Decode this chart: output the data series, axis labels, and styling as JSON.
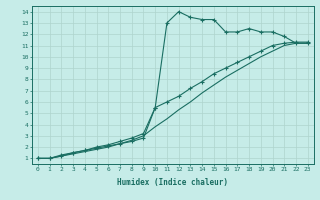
{
  "xlabel": "Humidex (Indice chaleur)",
  "xlim": [
    -0.5,
    23.5
  ],
  "ylim": [
    0.5,
    14.5
  ],
  "xticks": [
    0,
    1,
    2,
    3,
    4,
    5,
    6,
    7,
    8,
    9,
    10,
    11,
    12,
    13,
    14,
    15,
    16,
    17,
    18,
    19,
    20,
    21,
    22,
    23
  ],
  "yticks": [
    1,
    2,
    3,
    4,
    5,
    6,
    7,
    8,
    9,
    10,
    11,
    12,
    13,
    14
  ],
  "bg_color": "#c6ece8",
  "line_color": "#1a6e62",
  "grid_color": "#aed4ce",
  "line1_x": [
    0,
    1,
    2,
    3,
    4,
    5,
    6,
    7,
    8,
    9,
    10,
    11,
    12,
    13,
    14,
    15,
    16,
    17,
    18,
    19,
    20,
    21,
    22,
    23
  ],
  "line1_y": [
    1.0,
    1.0,
    1.3,
    1.5,
    1.7,
    1.9,
    2.1,
    2.3,
    2.5,
    2.8,
    5.5,
    13.0,
    14.0,
    13.5,
    13.3,
    13.3,
    12.2,
    12.2,
    12.5,
    12.2,
    12.2,
    11.8,
    11.2,
    11.2
  ],
  "line2_x": [
    0,
    1,
    2,
    3,
    4,
    5,
    6,
    7,
    8,
    9,
    10,
    11,
    12,
    13,
    14,
    15,
    16,
    17,
    18,
    19,
    20,
    21,
    22,
    23
  ],
  "line2_y": [
    1.0,
    1.0,
    1.2,
    1.5,
    1.7,
    2.0,
    2.2,
    2.5,
    2.8,
    3.2,
    5.5,
    6.0,
    6.5,
    7.2,
    7.8,
    8.5,
    9.0,
    9.5,
    10.0,
    10.5,
    11.0,
    11.2,
    11.3,
    11.3
  ],
  "line3_x": [
    0,
    1,
    2,
    3,
    4,
    5,
    6,
    7,
    8,
    9,
    10,
    11,
    12,
    13,
    14,
    15,
    16,
    17,
    18,
    19,
    20,
    21,
    22,
    23
  ],
  "line3_y": [
    1.0,
    1.0,
    1.2,
    1.4,
    1.6,
    1.8,
    2.0,
    2.3,
    2.6,
    3.0,
    3.8,
    4.5,
    5.3,
    6.0,
    6.8,
    7.5,
    8.2,
    8.8,
    9.4,
    10.0,
    10.5,
    11.0,
    11.2,
    11.2
  ]
}
